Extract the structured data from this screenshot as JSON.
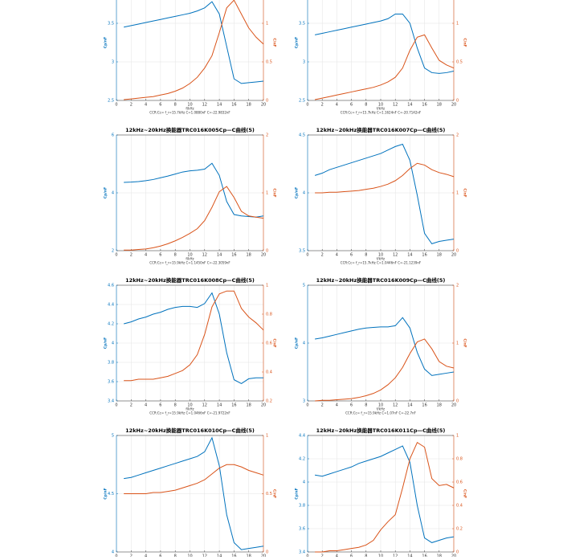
{
  "chart_data": [
    {
      "type": "line",
      "x": [
        1,
        2,
        3,
        4,
        5,
        6,
        7,
        8,
        9,
        10,
        11,
        12,
        13,
        14,
        15,
        16,
        17,
        18,
        19,
        20
      ],
      "xlim": [
        0,
        20
      ],
      "xticks": [
        0,
        2,
        4,
        6,
        8,
        10,
        12,
        14,
        16,
        18,
        20
      ],
      "ylim": [
        2.5,
        4
      ],
      "yticks": [
        2.5,
        3,
        3.5,
        4
      ],
      "y2lim": [
        0,
        1.5
      ],
      "y2ticks": [
        0,
        0.5,
        1,
        1.5
      ],
      "grid": true,
      "xlabel": "f/kHz",
      "ylabel": "Cp/nF",
      "y2label": "C/nF",
      "note": "CCR:Cc= f_r=15.7kHz C=1.0880nF C=-22.9832nF",
      "series": [
        {
          "color": "#0072bd",
          "values": [
            3.45,
            3.47,
            3.49,
            3.51,
            3.53,
            3.55,
            3.57,
            3.59,
            3.61,
            3.63,
            3.66,
            3.7,
            3.78,
            3.62,
            3.2,
            2.78,
            2.72,
            2.73,
            2.74,
            2.75
          ]
        },
        {
          "color": "#d95319",
          "axis": "y2",
          "values": [
            0.01,
            0.02,
            0.03,
            0.04,
            0.05,
            0.07,
            0.09,
            0.12,
            0.16,
            0.22,
            0.3,
            0.42,
            0.58,
            0.88,
            1.2,
            1.3,
            1.12,
            0.94,
            0.82,
            0.73
          ]
        }
      ]
    },
    {
      "type": "line",
      "x": [
        1,
        2,
        3,
        4,
        5,
        6,
        7,
        8,
        9,
        10,
        11,
        12,
        13,
        14,
        15,
        16,
        17,
        18,
        19,
        20
      ],
      "xlim": [
        0,
        20
      ],
      "xticks": [
        0,
        2,
        4,
        6,
        8,
        10,
        12,
        14,
        16,
        18,
        20
      ],
      "ylim": [
        2.5,
        4
      ],
      "yticks": [
        2.5,
        3,
        3.5,
        4
      ],
      "y2lim": [
        0,
        1.5
      ],
      "y2ticks": [
        0,
        0.5,
        1,
        1.5
      ],
      "grid": true,
      "xlabel": "f/kHz",
      "ylabel": "Cp/nF",
      "y2label": "C/nF",
      "note": "CCR:Cc= f_r=15.7kHz C=1.1624nF C=-20.7142nF",
      "series": [
        {
          "color": "#0072bd",
          "values": [
            3.35,
            3.37,
            3.39,
            3.41,
            3.43,
            3.45,
            3.47,
            3.49,
            3.51,
            3.53,
            3.56,
            3.62,
            3.62,
            3.5,
            3.18,
            2.92,
            2.86,
            2.85,
            2.86,
            2.88
          ]
        },
        {
          "color": "#d95319",
          "axis": "y2",
          "values": [
            0.01,
            0.03,
            0.05,
            0.07,
            0.09,
            0.11,
            0.13,
            0.15,
            0.17,
            0.2,
            0.24,
            0.3,
            0.42,
            0.65,
            0.82,
            0.85,
            0.68,
            0.52,
            0.46,
            0.42
          ]
        }
      ]
    },
    {
      "type": "line",
      "title": "12kHz~20kHz换能器TRC016K005Cp—C曲线(5)",
      "x": [
        1,
        2,
        3,
        4,
        5,
        6,
        7,
        8,
        9,
        10,
        11,
        12,
        13,
        14,
        15,
        16,
        17,
        18,
        19,
        20
      ],
      "xlim": [
        0,
        20
      ],
      "xticks": [
        0,
        2,
        4,
        6,
        8,
        10,
        12,
        14,
        16,
        18,
        20
      ],
      "ylim": [
        2,
        6
      ],
      "yticks": [
        2,
        4,
        6
      ],
      "y2lim": [
        0,
        2
      ],
      "y2ticks": [
        0,
        1,
        2
      ],
      "grid": true,
      "xlabel": "f/kHz",
      "ylabel": "Cp/nF",
      "y2label": "C/nF",
      "note": "CCR:Cc= f_r=15.9kHz C=1.1450nF C=-22.3059nF",
      "series": [
        {
          "color": "#0072bd",
          "values": [
            4.36,
            4.37,
            4.39,
            4.42,
            4.46,
            4.52,
            4.58,
            4.65,
            4.72,
            4.76,
            4.78,
            4.82,
            5.02,
            4.6,
            3.7,
            3.25,
            3.2,
            3.18,
            3.16,
            3.2
          ]
        },
        {
          "color": "#d95319",
          "axis": "y2",
          "values": [
            0.01,
            0.01,
            0.02,
            0.03,
            0.05,
            0.08,
            0.12,
            0.17,
            0.23,
            0.3,
            0.38,
            0.52,
            0.75,
            1.02,
            1.11,
            0.92,
            0.68,
            0.6,
            0.58,
            0.56
          ]
        }
      ]
    },
    {
      "type": "line",
      "title": "12kHz~20kHz换能器TRC016K007Cp—C曲线(5)",
      "x": [
        1,
        2,
        3,
        4,
        5,
        6,
        7,
        8,
        9,
        10,
        11,
        12,
        13,
        14,
        15,
        16,
        17,
        18,
        19,
        20
      ],
      "xlim": [
        0,
        20
      ],
      "xticks": [
        0,
        2,
        4,
        6,
        8,
        10,
        12,
        14,
        16,
        18,
        20
      ],
      "ylim": [
        3.5,
        4.5
      ],
      "yticks": [
        3.5,
        4,
        4.5
      ],
      "y2lim": [
        0,
        2
      ],
      "y2ticks": [
        0,
        1,
        2
      ],
      "grid": true,
      "xlabel": "f/kHz",
      "ylabel": "Cp/nF",
      "y2label": "C/nF",
      "note": "CCR:Cc= f_r=15.7kHz C=1.0446nF C=-21.1239nF",
      "series": [
        {
          "color": "#0072bd",
          "values": [
            4.15,
            4.17,
            4.2,
            4.22,
            4.24,
            4.26,
            4.28,
            4.3,
            4.32,
            4.34,
            4.37,
            4.4,
            4.42,
            4.28,
            3.98,
            3.65,
            3.56,
            3.58,
            3.59,
            3.6
          ]
        },
        {
          "color": "#d95319",
          "axis": "y2",
          "values": [
            1.0,
            1.0,
            1.01,
            1.01,
            1.02,
            1.03,
            1.04,
            1.06,
            1.08,
            1.11,
            1.15,
            1.21,
            1.3,
            1.42,
            1.51,
            1.48,
            1.4,
            1.35,
            1.32,
            1.28
          ]
        }
      ]
    },
    {
      "type": "line",
      "title": "12kHz~20kHz换能器TRC016K008Cp—C曲线(5)",
      "x": [
        1,
        2,
        3,
        4,
        5,
        6,
        7,
        8,
        9,
        10,
        11,
        12,
        13,
        14,
        15,
        16,
        17,
        18,
        19,
        20
      ],
      "xlim": [
        0,
        20
      ],
      "xticks": [
        0,
        2,
        4,
        6,
        8,
        10,
        12,
        14,
        16,
        18,
        20
      ],
      "ylim": [
        3.4,
        4.6
      ],
      "yticks": [
        3.4,
        3.6,
        3.8,
        4,
        4.2,
        4.4,
        4.6
      ],
      "y2lim": [
        0.2,
        1
      ],
      "y2ticks": [
        0.2,
        0.4,
        0.6,
        0.8,
        1
      ],
      "grid": true,
      "xlabel": "f/kHz",
      "ylabel": "Cp/nF",
      "y2label": "C/nF",
      "note": "CCR:Cc= f_r=15.9kHz C=1.0466nF C=-21.9722nF",
      "series": [
        {
          "color": "#0072bd",
          "values": [
            4.2,
            4.22,
            4.25,
            4.27,
            4.3,
            4.32,
            4.35,
            4.37,
            4.38,
            4.38,
            4.37,
            4.41,
            4.52,
            4.3,
            3.9,
            3.62,
            3.58,
            3.63,
            3.64,
            3.64
          ]
        },
        {
          "color": "#d95319",
          "axis": "y2",
          "values": [
            0.34,
            0.34,
            0.35,
            0.35,
            0.35,
            0.36,
            0.37,
            0.39,
            0.41,
            0.45,
            0.52,
            0.66,
            0.85,
            0.94,
            0.96,
            0.96,
            0.84,
            0.78,
            0.74,
            0.69
          ]
        }
      ]
    },
    {
      "type": "line",
      "title": "12kHz~20kHz换能器TRC016K009Cp—C曲线(5)",
      "x": [
        1,
        2,
        3,
        4,
        5,
        6,
        7,
        8,
        9,
        10,
        11,
        12,
        13,
        14,
        15,
        16,
        17,
        18,
        19,
        20
      ],
      "xlim": [
        0,
        20
      ],
      "xticks": [
        0,
        2,
        4,
        6,
        8,
        10,
        12,
        14,
        16,
        18,
        20
      ],
      "ylim": [
        3,
        5
      ],
      "yticks": [
        3,
        4,
        5
      ],
      "y2lim": [
        0,
        2
      ],
      "y2ticks": [
        0,
        1,
        2
      ],
      "grid": true,
      "xlabel": "f/kHz",
      "ylabel": "Cp/nF",
      "y2label": "C/nF",
      "note": "CCR:Cc= f_r=15.9kHz C=1.07nF C=-22.7nF",
      "series": [
        {
          "color": "#0072bd",
          "values": [
            4.07,
            4.09,
            4.12,
            4.15,
            4.18,
            4.21,
            4.24,
            4.26,
            4.27,
            4.28,
            4.28,
            4.3,
            4.44,
            4.26,
            3.84,
            3.55,
            3.44,
            3.46,
            3.48,
            3.5
          ]
        },
        {
          "color": "#d95319",
          "axis": "y2",
          "values": [
            0.0,
            0.01,
            0.01,
            0.02,
            0.03,
            0.04,
            0.06,
            0.09,
            0.13,
            0.19,
            0.28,
            0.4,
            0.58,
            0.82,
            1.02,
            1.07,
            0.9,
            0.68,
            0.6,
            0.57
          ]
        }
      ]
    },
    {
      "type": "line",
      "title": "12kHz~20kHz换能器TRC016K010Cp—C曲线(5)",
      "x": [
        1,
        2,
        3,
        4,
        5,
        6,
        7,
        8,
        9,
        10,
        11,
        12,
        13,
        14,
        15,
        16,
        17,
        18,
        19,
        20
      ],
      "xlim": [
        0,
        20
      ],
      "xticks": [
        0,
        2,
        4,
        6,
        8,
        10,
        12,
        14,
        16,
        18,
        20
      ],
      "ylim": [
        4,
        5
      ],
      "yticks": [
        4,
        4.5,
        5
      ],
      "y2lim": [
        0,
        1
      ],
      "y2ticks": [
        0,
        0.5,
        1
      ],
      "grid": true,
      "ylabel": "Cp/nF",
      "y2label": "C/nF",
      "series": [
        {
          "color": "#0072bd",
          "values": [
            4.63,
            4.64,
            4.66,
            4.68,
            4.7,
            4.72,
            4.74,
            4.76,
            4.78,
            4.8,
            4.82,
            4.86,
            4.98,
            4.74,
            4.32,
            4.08,
            4.02,
            4.03,
            4.04,
            4.05
          ]
        },
        {
          "color": "#d95319",
          "axis": "y2",
          "values": [
            0.5,
            0.5,
            0.5,
            0.5,
            0.51,
            0.51,
            0.52,
            0.53,
            0.55,
            0.57,
            0.59,
            0.62,
            0.67,
            0.72,
            0.75,
            0.75,
            0.73,
            0.7,
            0.68,
            0.66
          ]
        }
      ]
    },
    {
      "type": "line",
      "title": "12kHz~20kHz换能器TRC016K011Cp—C曲线(5)",
      "x": [
        1,
        2,
        3,
        4,
        5,
        6,
        7,
        8,
        9,
        10,
        11,
        12,
        13,
        14,
        15,
        16,
        17,
        18,
        19,
        20
      ],
      "xlim": [
        0,
        20
      ],
      "xticks": [
        0,
        2,
        4,
        6,
        8,
        10,
        12,
        14,
        16,
        18,
        20
      ],
      "ylim": [
        3.4,
        4.4
      ],
      "yticks": [
        3.4,
        3.6,
        3.8,
        4,
        4.2,
        4.4
      ],
      "y2lim": [
        0,
        1
      ],
      "y2ticks": [
        0,
        0.2,
        0.4,
        0.6,
        0.8,
        1
      ],
      "grid": true,
      "ylabel": "Cp/nF",
      "y2label": "C/nF",
      "series": [
        {
          "color": "#0072bd",
          "values": [
            4.06,
            4.05,
            4.07,
            4.09,
            4.11,
            4.13,
            4.16,
            4.18,
            4.2,
            4.22,
            4.25,
            4.28,
            4.31,
            4.17,
            3.8,
            3.52,
            3.48,
            3.5,
            3.52,
            3.53
          ]
        },
        {
          "color": "#d95319",
          "axis": "y2",
          "values": [
            0.0,
            0.0,
            0.01,
            0.01,
            0.02,
            0.03,
            0.04,
            0.06,
            0.1,
            0.19,
            0.26,
            0.32,
            0.55,
            0.8,
            0.94,
            0.9,
            0.63,
            0.57,
            0.58,
            0.55
          ]
        }
      ]
    }
  ]
}
